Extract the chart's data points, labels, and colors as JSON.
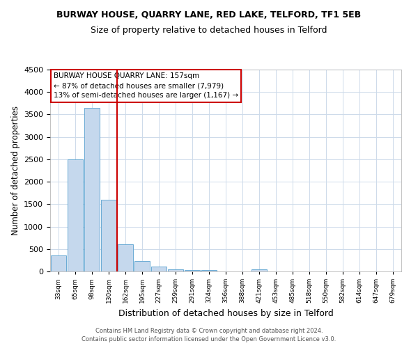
{
  "title": "BURWAY HOUSE, QUARRY LANE, RED LAKE, TELFORD, TF1 5EB",
  "subtitle": "Size of property relative to detached houses in Telford",
  "xlabel": "Distribution of detached houses by size in Telford",
  "ylabel": "Number of detached properties",
  "categories": [
    "33sqm",
    "65sqm",
    "98sqm",
    "130sqm",
    "162sqm",
    "195sqm",
    "227sqm",
    "259sqm",
    "291sqm",
    "324sqm",
    "356sqm",
    "388sqm",
    "421sqm",
    "453sqm",
    "485sqm",
    "518sqm",
    "550sqm",
    "582sqm",
    "614sqm",
    "647sqm",
    "679sqm"
  ],
  "values": [
    350,
    2500,
    3650,
    1600,
    600,
    240,
    110,
    50,
    30,
    25,
    0,
    0,
    50,
    0,
    0,
    0,
    0,
    0,
    0,
    0,
    0
  ],
  "bar_color": "#c5d8ed",
  "bar_edge_color": "#6aaad4",
  "red_line_index": 4,
  "annotation_text": "BURWAY HOUSE QUARRY LANE: 157sqm\n← 87% of detached houses are smaller (7,979)\n13% of semi-detached houses are larger (1,167) →",
  "annotation_box_color": "#ffffff",
  "annotation_box_edge_color": "#cc0000",
  "grid_color": "#cddaea",
  "background_color": "#ffffff",
  "footer": "Contains HM Land Registry data © Crown copyright and database right 2024.\nContains public sector information licensed under the Open Government Licence v3.0.",
  "ylim": [
    0,
    4500
  ],
  "yticks": [
    0,
    500,
    1000,
    1500,
    2000,
    2500,
    3000,
    3500,
    4000,
    4500
  ],
  "title_fontsize": 9,
  "subtitle_fontsize": 9,
  "xlabel_fontsize": 9,
  "ylabel_fontsize": 8.5
}
